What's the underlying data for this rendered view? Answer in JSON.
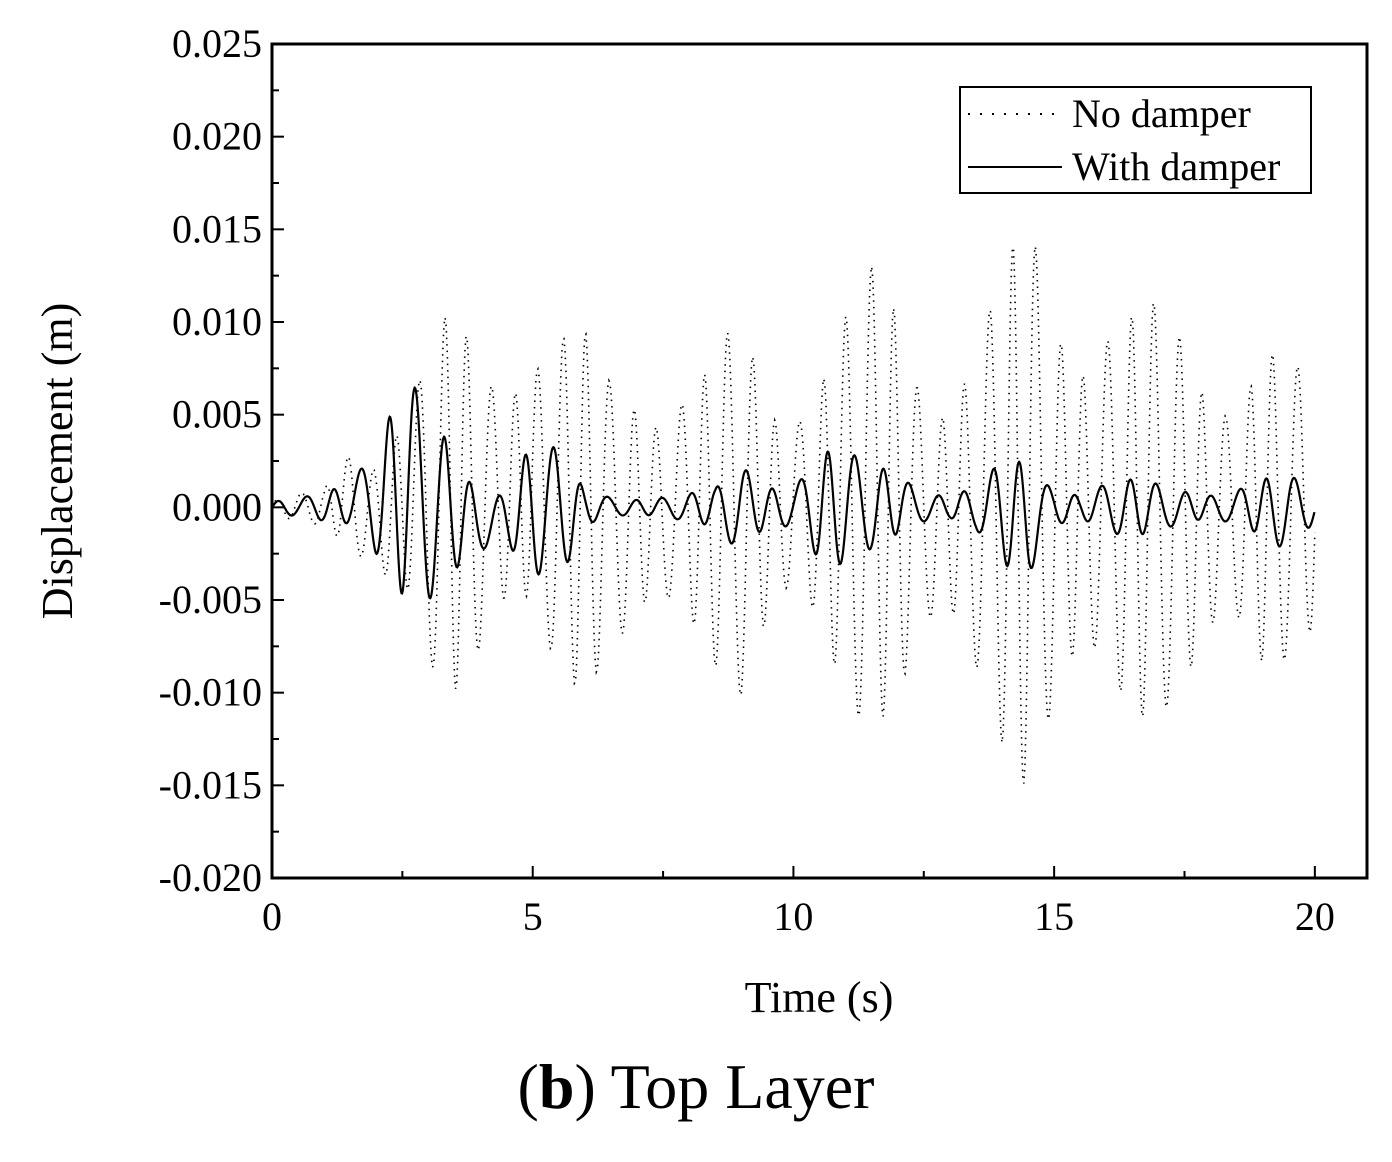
{
  "chart_data": {
    "type": "line",
    "xlabel": "Time (s)",
    "ylabel": "Displacement (m)",
    "xlim": [
      0,
      21
    ],
    "ylim": [
      -0.02,
      0.025
    ],
    "xticks": [
      0,
      5,
      10,
      15,
      20
    ],
    "xtick_labels": [
      "0",
      "5",
      "10",
      "15",
      "20"
    ],
    "yticks": [
      -0.02,
      -0.015,
      -0.01,
      -0.005,
      0,
      0.005,
      0.01,
      0.015,
      0.02,
      0.025
    ],
    "ytick_labels": [
      "-0.020",
      "-0.015",
      "-0.010",
      "-0.005",
      "0.000",
      "0.005",
      "0.010",
      "0.015",
      "0.020",
      "0.025"
    ],
    "grid": false,
    "legend_position": "top-right",
    "series": [
      {
        "name": "No damper",
        "style": "dotted",
        "envelope_t": [
          0,
          1.0,
          1.5,
          2.0,
          2.5,
          3.0,
          3.5,
          4.0,
          4.5,
          5.0,
          5.5,
          6.0,
          6.5,
          7.0,
          7.5,
          8.0,
          8.5,
          9.0,
          9.5,
          10.0,
          10.5,
          11.0,
          11.5,
          12.0,
          12.5,
          13.0,
          13.5,
          14.0,
          14.5,
          15.0,
          15.5,
          16.0,
          16.5,
          17.0,
          17.5,
          18.0,
          18.5,
          19.0,
          19.5,
          20.0
        ],
        "envelope_max": [
          0.0005,
          0.001,
          0.004,
          0.005,
          0.007,
          0.009,
          0.011,
          0.009,
          0.011,
          0.0125,
          0.011,
          0.0095,
          0.0075,
          0.0085,
          0.009,
          0.009,
          0.008,
          0.011,
          0.007,
          0.0085,
          0.011,
          0.012,
          0.013,
          0.012,
          0.01,
          0.01,
          0.0115,
          0.0125,
          0.0165,
          0.015,
          0.0145,
          0.014,
          0.0115,
          0.011,
          0.011,
          0.0105,
          0.01,
          0.01,
          0.008,
          0.007
        ],
        "envelope_min": [
          -0.0005,
          -0.001,
          -0.003,
          -0.007,
          -0.006,
          -0.009,
          -0.01,
          -0.0095,
          -0.0095,
          -0.0105,
          -0.011,
          -0.0095,
          -0.0085,
          -0.009,
          -0.0095,
          -0.0085,
          -0.009,
          -0.0105,
          -0.008,
          -0.008,
          -0.011,
          -0.012,
          -0.0115,
          -0.012,
          -0.011,
          -0.0105,
          -0.0115,
          -0.013,
          -0.016,
          -0.0155,
          -0.015,
          -0.0135,
          -0.012,
          -0.011,
          -0.012,
          -0.0115,
          -0.0105,
          -0.0105,
          -0.008,
          -0.007
        ]
      },
      {
        "name": "With damper",
        "style": "solid",
        "envelope_t": [
          0,
          0.5,
          1.0,
          1.5,
          2.0,
          2.5,
          3.0,
          3.5,
          4.0,
          4.5,
          5.0,
          5.5,
          6.0,
          6.5,
          7.0,
          7.5,
          8.0,
          8.5,
          9.0,
          9.5,
          10.0,
          10.5,
          11.0,
          11.5,
          12.0,
          12.5,
          13.0,
          13.5,
          14.0,
          14.5,
          15.0,
          15.5,
          16.0,
          16.5,
          17.0,
          17.5,
          18.0,
          18.5,
          19.0,
          19.5,
          20.0
        ],
        "envelope_max": [
          0.0003,
          0.0005,
          0.001,
          0.0025,
          0.0055,
          0.0072,
          0.006,
          0.003,
          0.002,
          0.002,
          0.005,
          0.003,
          0.001,
          0.0008,
          0.0008,
          0.0008,
          0.0008,
          0.001,
          0.003,
          0.002,
          0.002,
          0.0035,
          0.003,
          0.0025,
          0.003,
          0.0015,
          0.0008,
          0.0012,
          0.0025,
          0.0035,
          0.002,
          0.001,
          0.0015,
          0.0015,
          0.0015,
          0.0015,
          0.0012,
          0.0012,
          0.0015,
          0.002,
          0.0012
        ],
        "envelope_min": [
          -0.0003,
          -0.0005,
          -0.001,
          -0.002,
          -0.0045,
          -0.0055,
          -0.005,
          -0.004,
          -0.0035,
          -0.0035,
          -0.0045,
          -0.004,
          -0.001,
          -0.0008,
          -0.0008,
          -0.0008,
          -0.0008,
          -0.001,
          -0.003,
          -0.002,
          -0.002,
          -0.0035,
          -0.003,
          -0.0025,
          -0.0025,
          -0.0015,
          -0.0008,
          -0.0012,
          -0.003,
          -0.005,
          -0.002,
          -0.001,
          -0.0015,
          -0.0015,
          -0.0015,
          -0.0015,
          -0.0012,
          -0.0012,
          -0.0015,
          -0.0025,
          -0.0012
        ]
      }
    ]
  },
  "caption": {
    "label": "b",
    "text": "Top Layer"
  }
}
